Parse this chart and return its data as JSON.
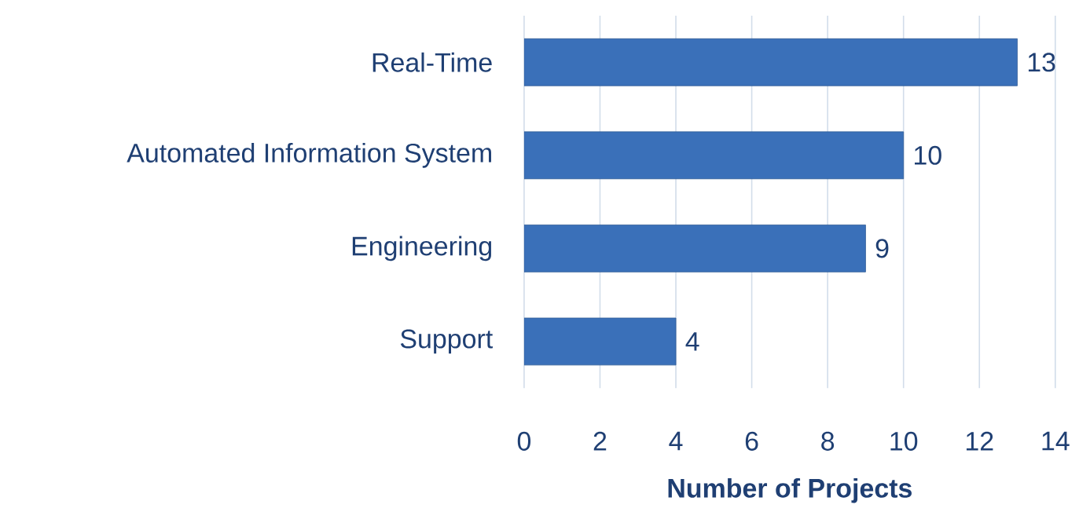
{
  "chart_data": {
    "type": "bar",
    "orientation": "horizontal",
    "xlabel": "Number of Projects",
    "categories": [
      "Real-Time",
      "Automated Information System",
      "Engineering",
      "Support"
    ],
    "values": [
      13,
      10,
      9,
      4
    ],
    "color": "#3a70b9",
    "xlim": [
      0,
      14
    ],
    "xticks": [
      0,
      2,
      4,
      6,
      8,
      10,
      12,
      14
    ],
    "grid": "x",
    "data_labels": true
  }
}
